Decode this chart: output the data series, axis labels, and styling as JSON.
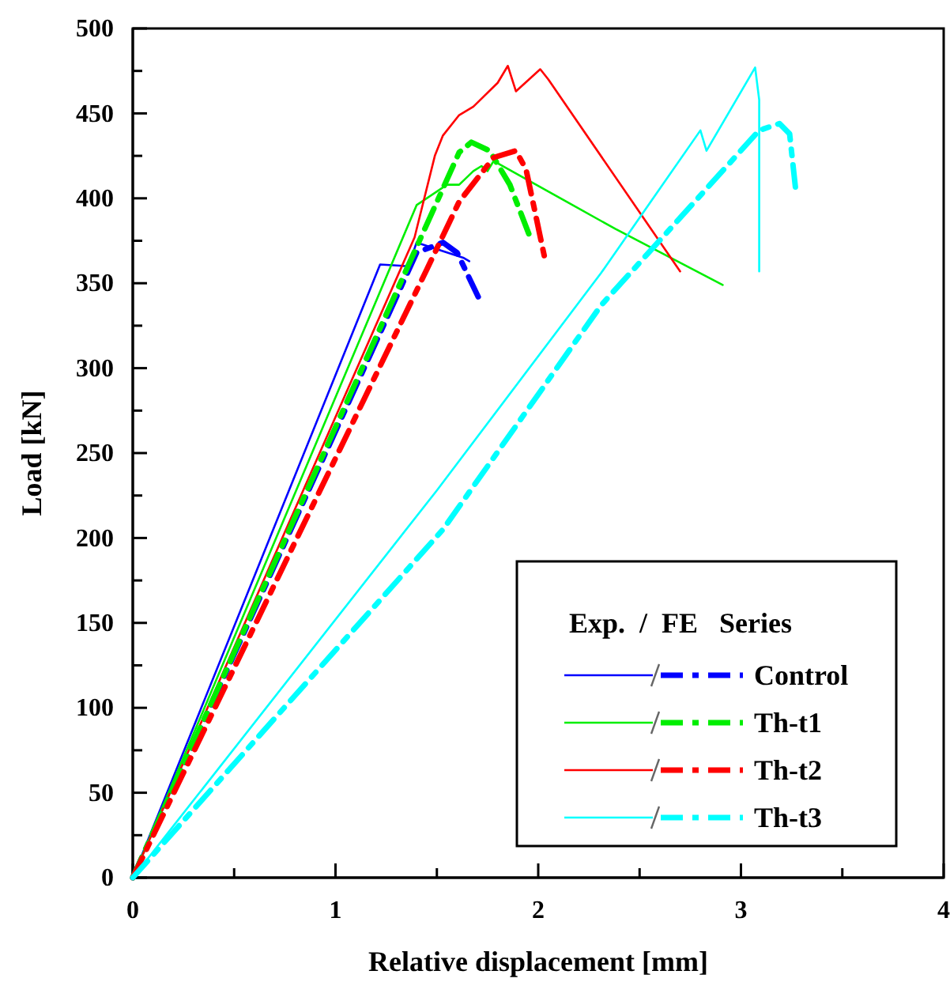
{
  "chart_data": {
    "type": "line",
    "xlabel": "Relative displacement [mm]",
    "ylabel": "Load [kN]",
    "legend_title": "Exp.  /  FE   Series",
    "xlim": [
      0,
      4
    ],
    "ylim": [
      0,
      500
    ],
    "xticks": [
      0,
      {
        "value": 0.5,
        "label": null
      },
      1,
      {
        "value": 1.5,
        "label": null
      },
      2,
      {
        "value": 2.5,
        "label": null
      },
      3,
      {
        "value": 3.5,
        "label": null
      },
      4
    ],
    "yticks": [
      0,
      {
        "value": 25,
        "label": null
      },
      50,
      {
        "value": 75,
        "label": null
      },
      100,
      {
        "value": 125,
        "label": null
      },
      150,
      {
        "value": 175,
        "label": null
      },
      200,
      {
        "value": 225,
        "label": null
      },
      250,
      {
        "value": 275,
        "label": null
      },
      300,
      {
        "value": 325,
        "label": null
      },
      350,
      {
        "value": 375,
        "label": null
      },
      400,
      {
        "value": 425,
        "label": null
      },
      450,
      {
        "value": 475,
        "label": null
      },
      500
    ],
    "grid": false,
    "legend": "bottom right",
    "marker": "none",
    "series": [
      {
        "color": "#0000ff",
        "line_style": "solid",
        "x": [
          0,
          1.22,
          1.36,
          1.4,
          1.63,
          1.66
        ],
        "values": [
          0,
          361,
          360,
          374,
          365,
          363
        ]
      },
      {
        "color": "#00ee00",
        "line_style": "solid",
        "x": [
          0,
          1.4,
          1.55,
          1.61,
          1.68,
          1.72,
          1.75,
          1.78,
          2.38,
          2.91
        ],
        "values": [
          0,
          396,
          408,
          408,
          416,
          419,
          416,
          422,
          382,
          349
        ]
      },
      {
        "color": "#ff0000",
        "line_style": "solid",
        "x": [
          0,
          1.39,
          1.49,
          1.53,
          1.61,
          1.68,
          1.8,
          1.85,
          1.89,
          2.01,
          2.05,
          2.7
        ],
        "values": [
          0,
          377,
          425,
          437,
          449,
          454,
          468,
          478,
          463,
          476,
          470,
          357
        ]
      },
      {
        "color": "#00ffff",
        "line_style": "solid",
        "x": [
          0,
          1.5,
          2.31,
          2.8,
          2.83,
          3.07,
          3.09,
          3.09
        ],
        "values": [
          0,
          228,
          356,
          440,
          428,
          477,
          458,
          357
        ]
      },
      {
        "name": "Control",
        "color": "#0000ff",
        "line_style": "dashed",
        "x": [
          0,
          1.4,
          1.53,
          1.6,
          1.72
        ],
        "values": [
          0,
          368,
          374,
          368,
          338
        ]
      },
      {
        "name": "Th-t1",
        "color": "#00ee00",
        "line_style": "dashed",
        "x": [
          0,
          1.61,
          1.67,
          1.76,
          1.86,
          1.97
        ],
        "values": [
          0,
          427,
          433,
          428,
          408,
          374
        ]
      },
      {
        "name": "Th-t2",
        "color": "#ff0000",
        "line_style": "dashed",
        "x": [
          0,
          1.45,
          1.61,
          1.78,
          1.89,
          1.94,
          2.03
        ],
        "values": [
          0,
          358,
          398,
          424,
          428,
          417,
          366
        ]
      },
      {
        "name": "Th-t3",
        "color": "#00ffff",
        "line_style": "dashed",
        "x": [
          0,
          1.53,
          2.31,
          3.09,
          3.19,
          3.24,
          3.27
        ],
        "values": [
          0,
          205,
          337,
          440,
          444,
          438,
          405
        ]
      }
    ]
  }
}
